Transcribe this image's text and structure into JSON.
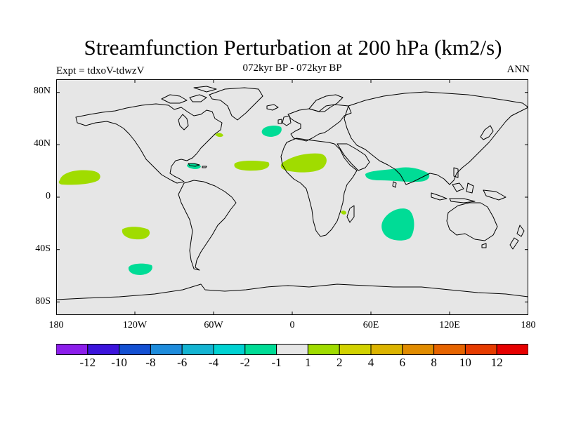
{
  "title": "Streamfunction Perturbation at 200 hPa (km2/s)",
  "subtitle": "072kyr BP - 072kyr BP",
  "left_label": "Expt = tdxoV-tdwzV",
  "right_label": "ANN",
  "map": {
    "type": "world-map-contour",
    "projection": "cylindrical-equidistant",
    "lon_range": [
      -180,
      180
    ],
    "lat_range": [
      -90,
      90
    ],
    "background_color": "#e6e6e6",
    "coastline_color": "#000000",
    "lat_ticks": [
      "80N",
      "40N",
      "0",
      "40S",
      "80S"
    ],
    "lon_ticks": [
      "180",
      "120W",
      "60W",
      "0",
      "60E",
      "120E",
      "180"
    ],
    "anomaly_regions": [
      {
        "name": "north-pacific-east",
        "level": "1 to 2",
        "color": "#a0dc00",
        "center_lon": -164,
        "center_lat": 20
      },
      {
        "name": "south-pacific-subtropical",
        "level": "1 to 2",
        "color": "#a0dc00",
        "center_lon": -120,
        "center_lat": -27
      },
      {
        "name": "south-pacific-midlatitude",
        "level": "-2 to -1",
        "color": "#00dc96",
        "center_lon": -118,
        "center_lat": -55
      },
      {
        "name": "caribbean",
        "level": "-2 to -1",
        "color": "#00dc96",
        "center_lon": -75,
        "center_lat": 22
      },
      {
        "name": "newfoundland",
        "level": "1 to 2",
        "color": "#a0dc00",
        "center_lon": -56,
        "center_lat": 47
      },
      {
        "name": "north-atlantic",
        "level": "-2 to -1",
        "color": "#00dc96",
        "center_lon": -13,
        "center_lat": 50
      },
      {
        "name": "tropical-atlantic",
        "level": "1 to 2",
        "color": "#a0dc00",
        "center_lon": -28,
        "center_lat": 23
      },
      {
        "name": "north-africa",
        "level": "1 to 2",
        "color": "#a0dc00",
        "center_lon": 10,
        "center_lat": 25
      },
      {
        "name": "south-asia",
        "level": "-2 to -1",
        "color": "#00dc96",
        "center_lon": 82,
        "center_lat": 17
      },
      {
        "name": "mozambique-channel",
        "level": "1 to 2",
        "color": "#a0dc00",
        "center_lon": 40,
        "center_lat": -11
      },
      {
        "name": "southern-indian-ocean",
        "level": "-2 to -1",
        "color": "#00dc96",
        "center_lon": 83,
        "center_lat": -27
      }
    ]
  },
  "colorbar": {
    "colors": [
      "#8c1eeb",
      "#3c14dc",
      "#1450d2",
      "#1e8cdc",
      "#14b4d2",
      "#00d2d2",
      "#00dc96",
      "#e6e6e6",
      "#a0dc00",
      "#d2d200",
      "#dcb400",
      "#e18c00",
      "#e66400",
      "#e63c00",
      "#e60000"
    ],
    "labels": [
      "-12",
      "-10",
      "-8",
      "-6",
      "-4",
      "-2",
      "-1",
      "1",
      "2",
      "4",
      "6",
      "8",
      "10",
      "12"
    ]
  }
}
